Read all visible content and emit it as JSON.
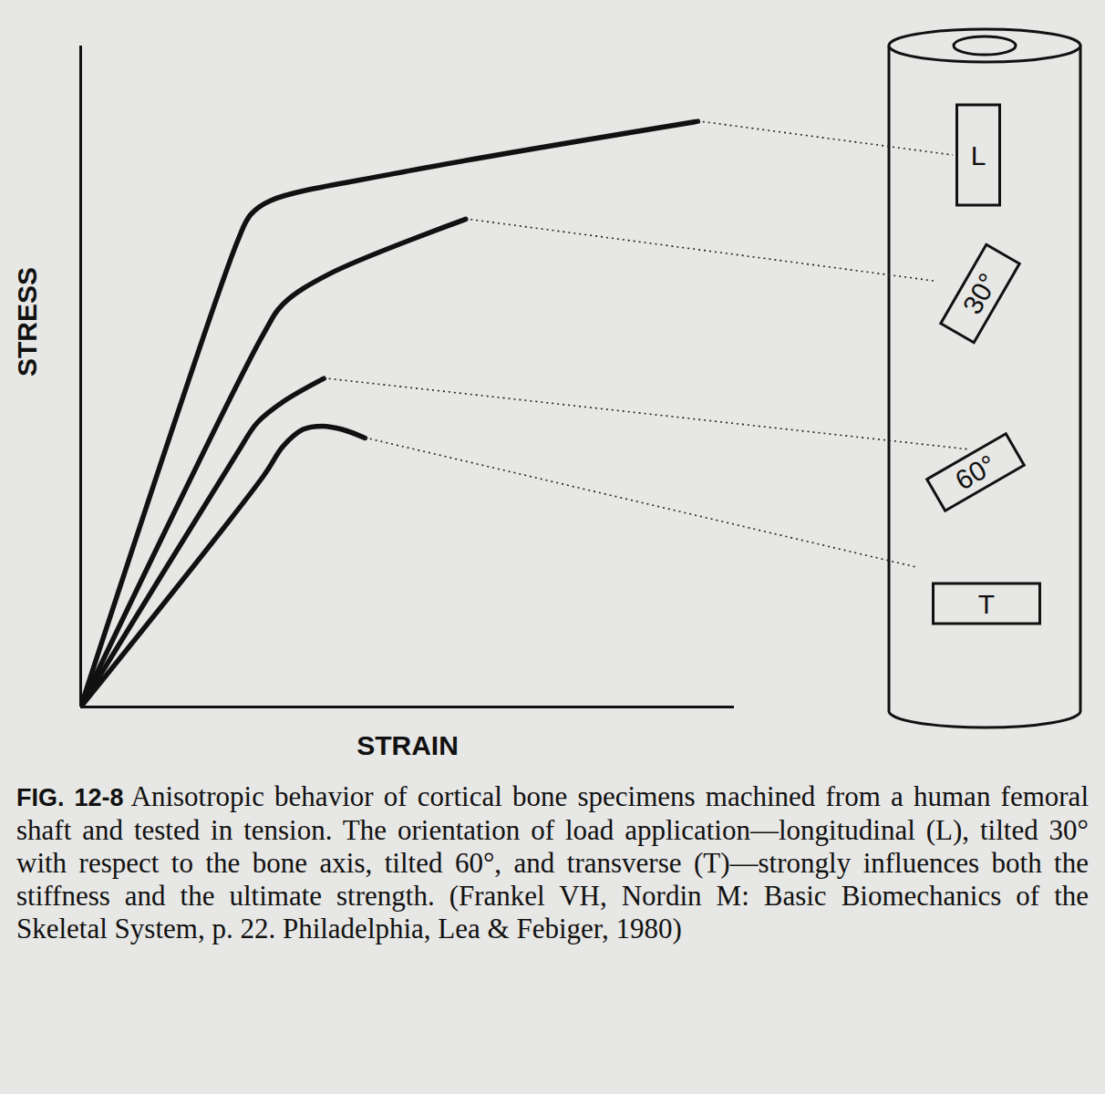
{
  "chart_data": {
    "type": "line",
    "title": "FIG. 12-8",
    "caption": "Anisotropic behavior of cortical bone specimens machined from a human femoral shaft and tested in tension. The orientation of load application—longitudinal (L), tilted 30° with respect to the bone axis, tilted 60°, and transverse (T)—strongly influences both the stiffness and the ultimate strength. (Frankel VH, Nordin M: Basic Biomechanics of the Skeletal System, p. 22. Philadelphia, Lea & Febiger, 1980)",
    "x_label": "STRAIN",
    "y_label": "STRESS",
    "xlim": [
      0,
      100
    ],
    "ylim": [
      0,
      100
    ],
    "xticks": [],
    "yticks": [],
    "tick_labels": false,
    "grid": false,
    "series": [
      {
        "name": "L",
        "color": "#111111",
        "line_style": "solid",
        "x": [
          0,
          24,
          26,
          29,
          48,
          94.4
        ],
        "values": [
          0,
          70.5,
          74.5,
          76.6,
          80.7,
          88.6
        ]
      },
      {
        "name": "30°",
        "color": "#111111",
        "line_style": "solid",
        "x": [
          0,
          28,
          31,
          38,
          58.9
        ],
        "values": [
          0,
          56.5,
          61,
          65.5,
          73.8
        ]
      },
      {
        "name": "60°",
        "color": "#111111",
        "line_style": "solid",
        "x": [
          0,
          24,
          27,
          31,
          37.2
        ],
        "values": [
          0,
          38.5,
          43,
          46.2,
          49.7
        ]
      },
      {
        "name": "T",
        "color": "#111111",
        "line_style": "solid",
        "x": [
          0,
          28,
          31,
          34,
          37,
          40,
          43.5
        ],
        "values": [
          0,
          35,
          39.5,
          42,
          42.5,
          42,
          40.7
        ]
      }
    ]
  }
}
